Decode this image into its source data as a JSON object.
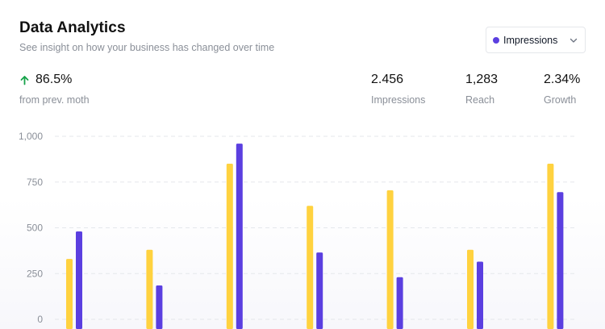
{
  "header": {
    "title": "Data Analytics",
    "subtitle": "See insight on how your business has changed over time"
  },
  "metric_select": {
    "selected": "Impressions",
    "dot_color": "#5b3fe0",
    "icon": "chevron-down-icon"
  },
  "kpi": {
    "value": "86.5%",
    "caption": "from prev. moth",
    "trend_icon": "arrow-up-icon",
    "trend_color": "#16a34a"
  },
  "stats": [
    {
      "value": "2.456",
      "label": "Impressions"
    },
    {
      "value": "1,283",
      "label": "Reach"
    },
    {
      "value": "2.34%",
      "label": "Growth"
    }
  ],
  "chart_data": {
    "type": "bar",
    "grid": true,
    "ylim": [
      0,
      1000
    ],
    "yticks": [
      "1,000",
      "750",
      "500",
      "250",
      "0"
    ],
    "categories": [
      "",
      "",
      "",
      "",
      "",
      "",
      ""
    ],
    "series": [
      {
        "color": "#ffd23f",
        "values": [
          330,
          380,
          850,
          620,
          705,
          380,
          850
        ]
      },
      {
        "color": "#5b3fe0",
        "values": [
          480,
          185,
          960,
          365,
          230,
          315,
          695
        ]
      }
    ]
  }
}
